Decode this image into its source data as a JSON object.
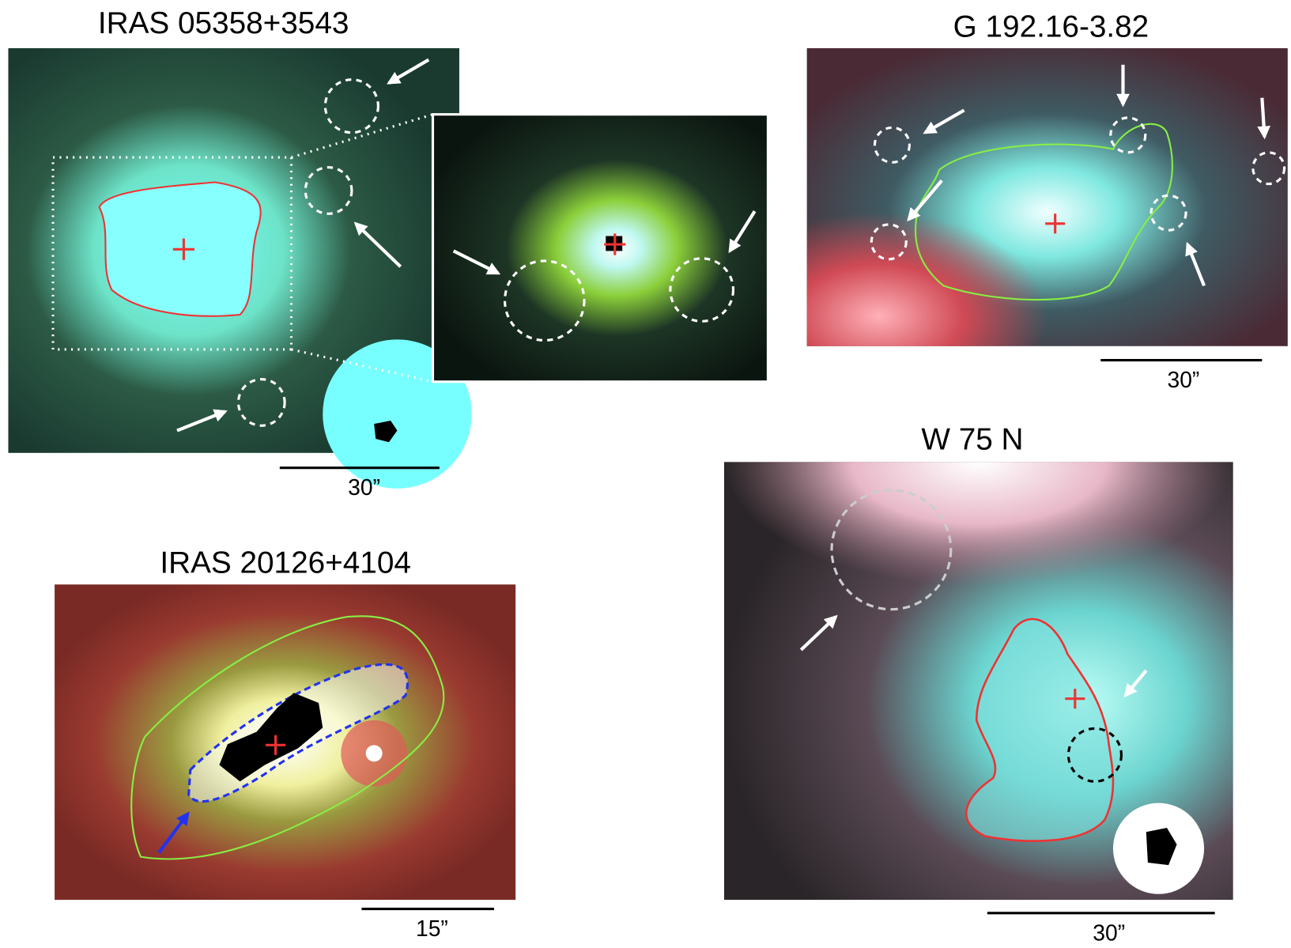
{
  "panels": [
    {
      "title": "IRAS 05358+3543",
      "scale_label": "30”"
    },
    {
      "title": "G 192.16-3.82",
      "scale_label": "30”"
    },
    {
      "title": "W 75 N",
      "scale_label": "30”"
    },
    {
      "title": "IRAS 20126+4104",
      "scale_label": "15”"
    }
  ]
}
